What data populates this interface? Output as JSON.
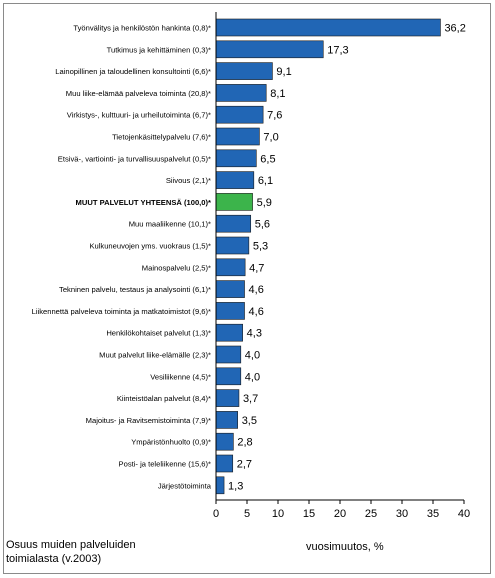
{
  "chart_data": {
    "type": "bar",
    "orientation": "horizontal",
    "xlabel": "vuosimuutos, %",
    "xlim": [
      0,
      40
    ],
    "xticks": [
      0,
      5,
      10,
      15,
      20,
      25,
      30,
      35,
      40
    ],
    "grid": false,
    "legend": "none",
    "colors": {
      "bar": "#2166b5",
      "highlight": "#3cb44b",
      "axis": "#000000"
    },
    "categories": [
      "Työnvälitys ja henkilöstön hankinta (0,8)*",
      "Tutkimus ja kehittäminen (0,3)*",
      "Lainopillinen ja taloudellinen konsultointi (6,6)*",
      "Muu liike-elämää palveleva toiminta (20,8)*",
      "Virkistys-, kulttuuri- ja urheilutoiminta (6,7)*",
      "Tietojenkäsittelypalvelu (7,6)*",
      "Etsivä-, vartiointi- ja turvallisuuspalvelut (0,5)*",
      "Siivous (2,1)*",
      "MUUT PALVELUT YHTEENSÄ (100,0)*",
      "Muu maaliikenne (10,1)*",
      "Kulkuneuvojen yms. vuokraus (1,5)*",
      "Mainospalvelu (2,5)*",
      "Tekninen palvelu, testaus ja analysointi (6,1)*",
      "Liikennettä palveleva toiminta ja matkatoimistot (9,6)*",
      "Henkilökohtaiset palvelut (1,3)*",
      "Muut palvelut liike-elämälle (2,3)*",
      "Vesiliikenne (4,5)*",
      "Kiinteistöalan palvelut (8,4)*",
      "Majoitus- ja Ravitsemistoiminta (7,9)*",
      "Ympäristönhuolto (0,9)*",
      "Posti- ja teleliikenne (15,6)*",
      "Järjestötoiminta"
    ],
    "values": [
      36.2,
      17.3,
      9.1,
      8.1,
      7.6,
      7.0,
      6.5,
      6.1,
      5.9,
      5.6,
      5.3,
      4.7,
      4.6,
      4.6,
      4.3,
      4.0,
      4.0,
      3.7,
      3.5,
      2.8,
      2.7,
      1.3
    ],
    "value_labels": [
      "36,2",
      "17,3",
      "9,1",
      "8,1",
      "7,6",
      "7,0",
      "6,5",
      "6,1",
      "5,9",
      "5,6",
      "5,3",
      "4,7",
      "4,6",
      "4,6",
      "4,3",
      "4,0",
      "4,0",
      "3,7",
      "3,5",
      "2,8",
      "2,7",
      "1,3"
    ],
    "highlight_category": "MUUT PALVELUT YHTEENSÄ (100,0)*",
    "note": [
      "Osuus muiden palveluiden",
      "toimialasta (v.2003)"
    ]
  }
}
